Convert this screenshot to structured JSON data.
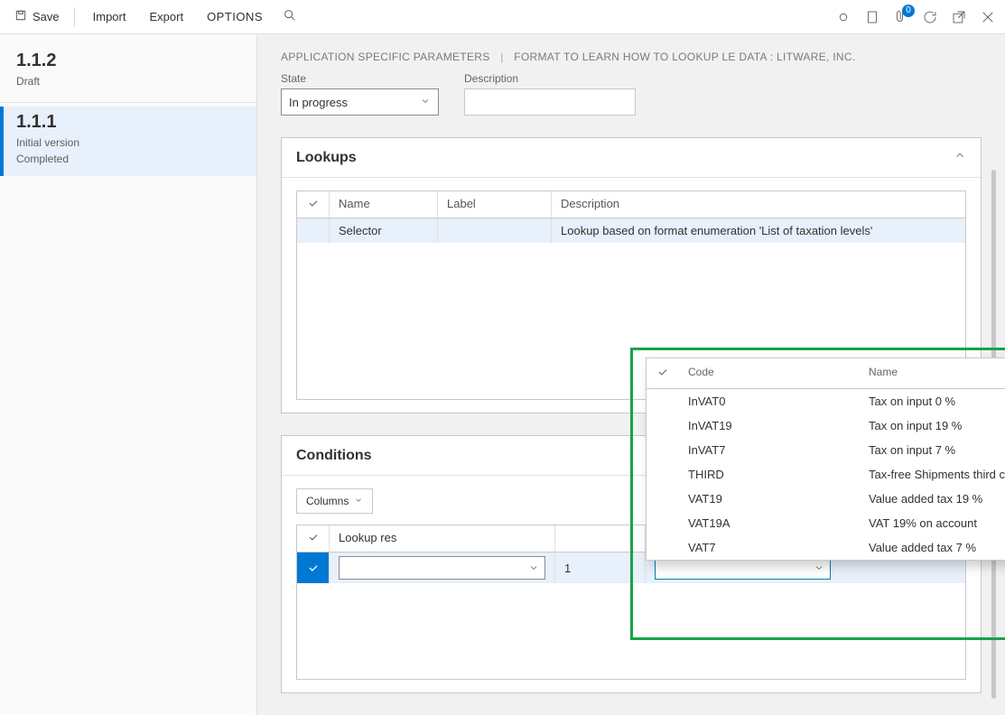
{
  "toolbar": {
    "save_label": "Save",
    "import_label": "Import",
    "export_label": "Export",
    "options_label": "OPTIONS",
    "badge_count": "0"
  },
  "sidebar": {
    "versions": [
      {
        "title": "1.1.2",
        "line1": "Draft",
        "line2": "",
        "active": false
      },
      {
        "title": "1.1.1",
        "line1": "Initial version",
        "line2": "Completed",
        "active": true
      }
    ]
  },
  "breadcrumb": {
    "part1": "APPLICATION SPECIFIC PARAMETERS",
    "part2": "FORMAT TO LEARN HOW TO LOOKUP LE DATA : LITWARE, INC."
  },
  "fields": {
    "state_label": "State",
    "state_value": "In progress",
    "desc_label": "Description",
    "desc_value": ""
  },
  "lookups": {
    "panel_title": "Lookups",
    "columns": {
      "name": "Name",
      "label": "Label",
      "description": "Description"
    },
    "rows": [
      {
        "name": "Selector",
        "label": "",
        "description": "Lookup based on format enumeration 'List of taxation levels'"
      }
    ]
  },
  "conditions": {
    "panel_title": "Conditions",
    "columns_btn": "Columns",
    "header_lookup": "Lookup res",
    "row": {
      "col2": "1"
    }
  },
  "dropdown": {
    "col_code": "Code",
    "col_name": "Name",
    "items": [
      {
        "code": "InVAT0",
        "name": "Tax on input 0 %"
      },
      {
        "code": "InVAT19",
        "name": "Tax on input 19 %"
      },
      {
        "code": "InVAT7",
        "name": "Tax on input 7 %"
      },
      {
        "code": "THIRD",
        "name": "Tax-free Shipments third ctry"
      },
      {
        "code": "VAT19",
        "name": "Value added tax 19 %"
      },
      {
        "code": "VAT19A",
        "name": "VAT 19% on account"
      },
      {
        "code": "VAT7",
        "name": "Value added tax 7 %"
      }
    ]
  },
  "colors": {
    "accent": "#0078d4",
    "selected_bg": "#e7f0fb",
    "highlight": "#16a34a"
  }
}
